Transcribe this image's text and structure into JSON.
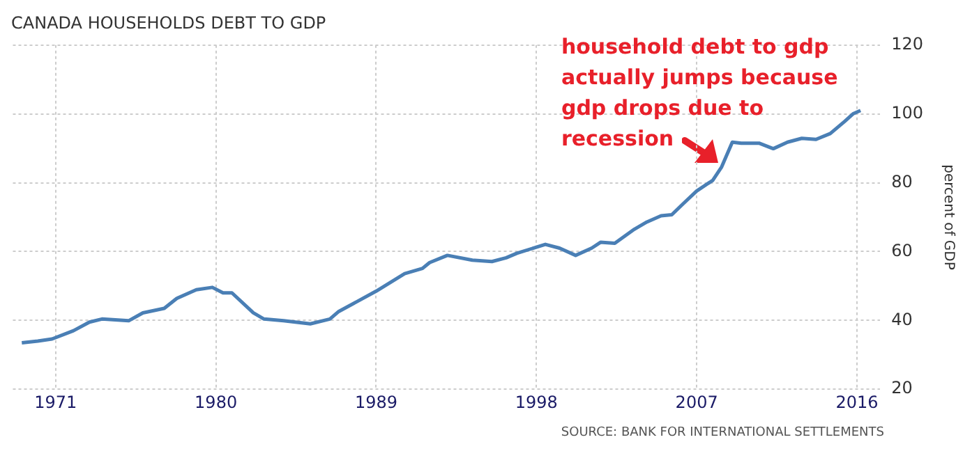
{
  "chart_data": {
    "type": "line",
    "title": "CANADA HOUSEHOLDS DEBT TO GDP",
    "ylabel": "percent of GDP",
    "x": [
      1969.1,
      1970.0,
      1970.8,
      1972.0,
      1972.9,
      1973.6,
      1975.1,
      1975.9,
      1977.1,
      1977.8,
      1978.9,
      1979.8,
      1980.4,
      1980.9,
      1982.1,
      1982.7,
      1983.8,
      1985.3,
      1986.4,
      1986.9,
      1987.9,
      1989.0,
      1990.6,
      1991.6,
      1992.0,
      1993.0,
      1994.4,
      1995.5,
      1996.3,
      1996.9,
      1998.5,
      1999.3,
      2000.2,
      2001.1,
      2001.6,
      2002.4,
      2003.5,
      2004.2,
      2005.0,
      2005.6,
      2006.3,
      2007.0,
      2007.9,
      2008.4,
      2009.0,
      2009.5,
      2010.5,
      2011.3,
      2012.1,
      2012.9,
      2013.7,
      2014.5,
      2015.3,
      2015.8,
      2016.2
    ],
    "series": [
      {
        "color": "#4a7fb5",
        "values": [
          33.5,
          34,
          34.6,
          37,
          39.5,
          40.4,
          39.9,
          42.2,
          43.5,
          46.4,
          48.9,
          49.6,
          48,
          48,
          42.2,
          40.4,
          39.9,
          39,
          40.4,
          42.6,
          45.4,
          48.5,
          53.6,
          55.1,
          56.8,
          58.9,
          57.5,
          57.1,
          58.2,
          59.5,
          62.1,
          61,
          58.9,
          61,
          62.7,
          62.4,
          66.5,
          68.6,
          70.4,
          70.7,
          74.2,
          77.6,
          80.7,
          84.6,
          91.8,
          91.5,
          91.5,
          89.9,
          91.8,
          92.9,
          92.6,
          94.3,
          97.8,
          100.1,
          101
        ]
      }
    ],
    "xlim": [
      1968.6,
      2017.3
    ],
    "xticks": [
      1971,
      1980,
      1989,
      1998,
      2007,
      2016
    ],
    "ylim": [
      20,
      120
    ],
    "yticks": [
      20,
      40,
      60,
      80,
      100,
      120
    ],
    "grid": true,
    "legend": false,
    "marker": "none",
    "line_style": "solid",
    "annotations": [
      {
        "text": "household debt to gdp\nactually jumps because\ngdp drops due to\nrecession",
        "x": 2008.4,
        "y": 85
      },
      "SOURCE: BANK FOR INTERNATIONAL SETTLEMENTS"
    ]
  }
}
